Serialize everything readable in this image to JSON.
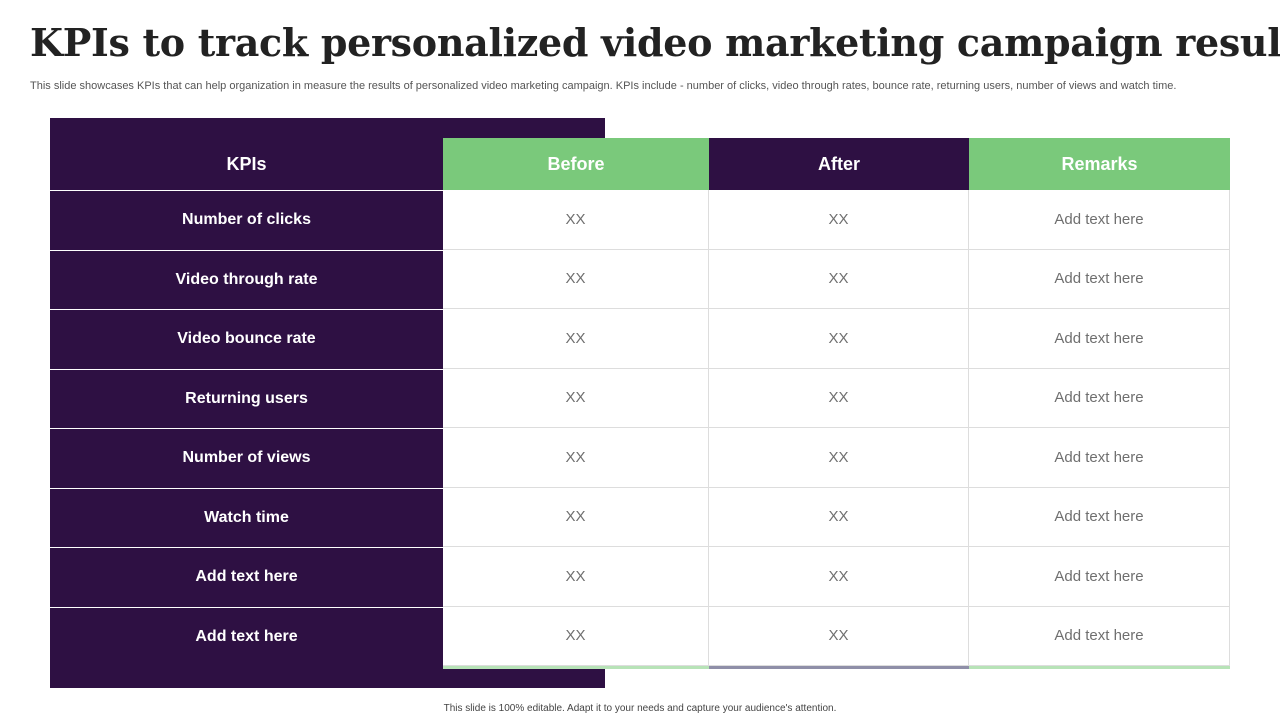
{
  "title": "KPIs to track personalized video marketing campaign results",
  "description": "This slide showcases KPIs that can help organization in measure the results of personalized video marketing campaign. KPIs include - number of clicks, video through rates, bounce rate, returning users, number of views and watch time.",
  "table": {
    "headers": {
      "kpis": "KPIs",
      "before": "Before",
      "after": "After",
      "remarks": "Remarks"
    },
    "rows": [
      {
        "kpi": "Number of clicks",
        "before": "XX",
        "after": "XX",
        "remarks": "Add text here"
      },
      {
        "kpi": "Video through rate",
        "before": "XX",
        "after": "XX",
        "remarks": "Add text here"
      },
      {
        "kpi": "Video bounce rate",
        "before": "XX",
        "after": "XX",
        "remarks": "Add text here"
      },
      {
        "kpi": "Returning users",
        "before": "XX",
        "after": "XX",
        "remarks": "Add text here"
      },
      {
        "kpi": "Number of views",
        "before": "XX",
        "after": "XX",
        "remarks": "Add text here"
      },
      {
        "kpi": "Watch time",
        "before": "XX",
        "after": "XX",
        "remarks": "Add text here"
      },
      {
        "kpi": "Add text here",
        "before": "XX",
        "after": "XX",
        "remarks": "Add text here"
      },
      {
        "kpi": "Add text here",
        "before": "XX",
        "after": "XX",
        "remarks": "Add text here"
      }
    ]
  },
  "footer": "This slide is 100% editable. Adapt it to your needs and capture your audience's attention.",
  "colors": {
    "purple": "#2e1043",
    "green": "#7ac97b"
  }
}
